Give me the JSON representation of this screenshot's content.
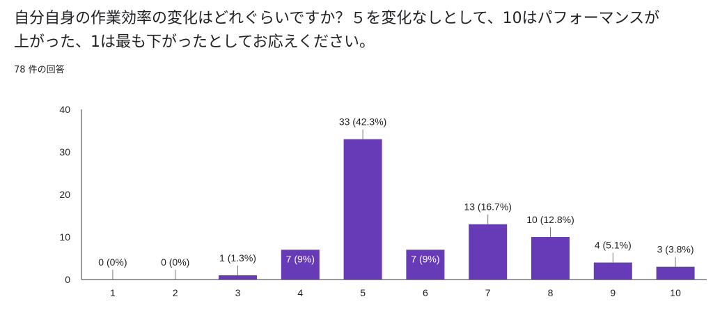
{
  "question": {
    "line1": "自分自身の作業効率の変化はどれぐらいですか？５を変化なしとして、10はパフォーマンスが",
    "line2": "上がった、1は最も下がったとしてお応えください。"
  },
  "response_count": "78 件の回答",
  "colors": {
    "bar": "#673ab7",
    "axis": "#333333",
    "grid": "#e0e0e0"
  },
  "chart_data": {
    "type": "bar",
    "title": "",
    "xlabel": "",
    "ylabel": "",
    "categories": [
      "1",
      "2",
      "3",
      "4",
      "5",
      "6",
      "7",
      "8",
      "9",
      "10"
    ],
    "values": [
      0,
      0,
      1,
      7,
      33,
      7,
      13,
      10,
      4,
      3
    ],
    "data_labels": [
      "0 (0%)",
      "0 (0%)",
      "1 (1.3%)",
      "7 (9%)",
      "33 (42.3%)",
      "7 (9%)",
      "13 (16.7%)",
      "10 (12.8%)",
      "4 (5.1%)",
      "3 (3.8%)"
    ],
    "label_inside": [
      false,
      false,
      false,
      true,
      false,
      true,
      false,
      false,
      false,
      false
    ],
    "yticks": [
      0,
      10,
      20,
      30,
      40
    ],
    "ylim": [
      0,
      40
    ],
    "grid": false
  }
}
